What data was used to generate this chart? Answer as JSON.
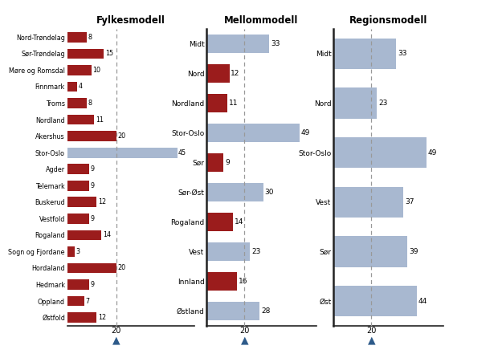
{
  "title_left": "Fylkesmodell",
  "title_mid": "Mellommodell",
  "title_right": "Regionsmodell",
  "reference_value": 20,
  "fylke_labels": [
    "Nord-Trøndelag",
    "Sør-Trøndelag",
    "Møre og Romsdal",
    "Finnmark",
    "Troms",
    "Nordland",
    "Akershus",
    "Stor-Oslo",
    "Agder",
    "Telemark",
    "Buskerud",
    "Vestfold",
    "Rogaland",
    "Sogn og Fjordane",
    "Hordaland",
    "Hedmark",
    "Oppland",
    "Østfold"
  ],
  "fylke_values": [
    8,
    15,
    10,
    4,
    8,
    11,
    20,
    45,
    9,
    9,
    12,
    9,
    14,
    3,
    20,
    9,
    7,
    12
  ],
  "fylke_blue_indices": [
    7
  ],
  "mellom_labels": [
    "Midt",
    "Nord",
    "Nordland",
    "Stor-Oslo",
    "Sør",
    "Sør-Øst",
    "Rogaland",
    "Vest",
    "Innland",
    "Østland"
  ],
  "mellom_values": [
    33,
    12,
    11,
    49,
    9,
    30,
    14,
    23,
    16,
    28
  ],
  "region_labels": [
    "Midt",
    "Nord",
    "Stor-Oslo",
    "Vest",
    "Sør",
    "Øst"
  ],
  "region_values": [
    33,
    23,
    49,
    37,
    39,
    44
  ],
  "color_dark_red": "#9B1C1C",
  "color_blue_light": "#A8B8D0",
  "color_marker": "#2E5B8A",
  "color_dashed": "#999999",
  "color_border": "#222222",
  "background": "#FFFFFF"
}
